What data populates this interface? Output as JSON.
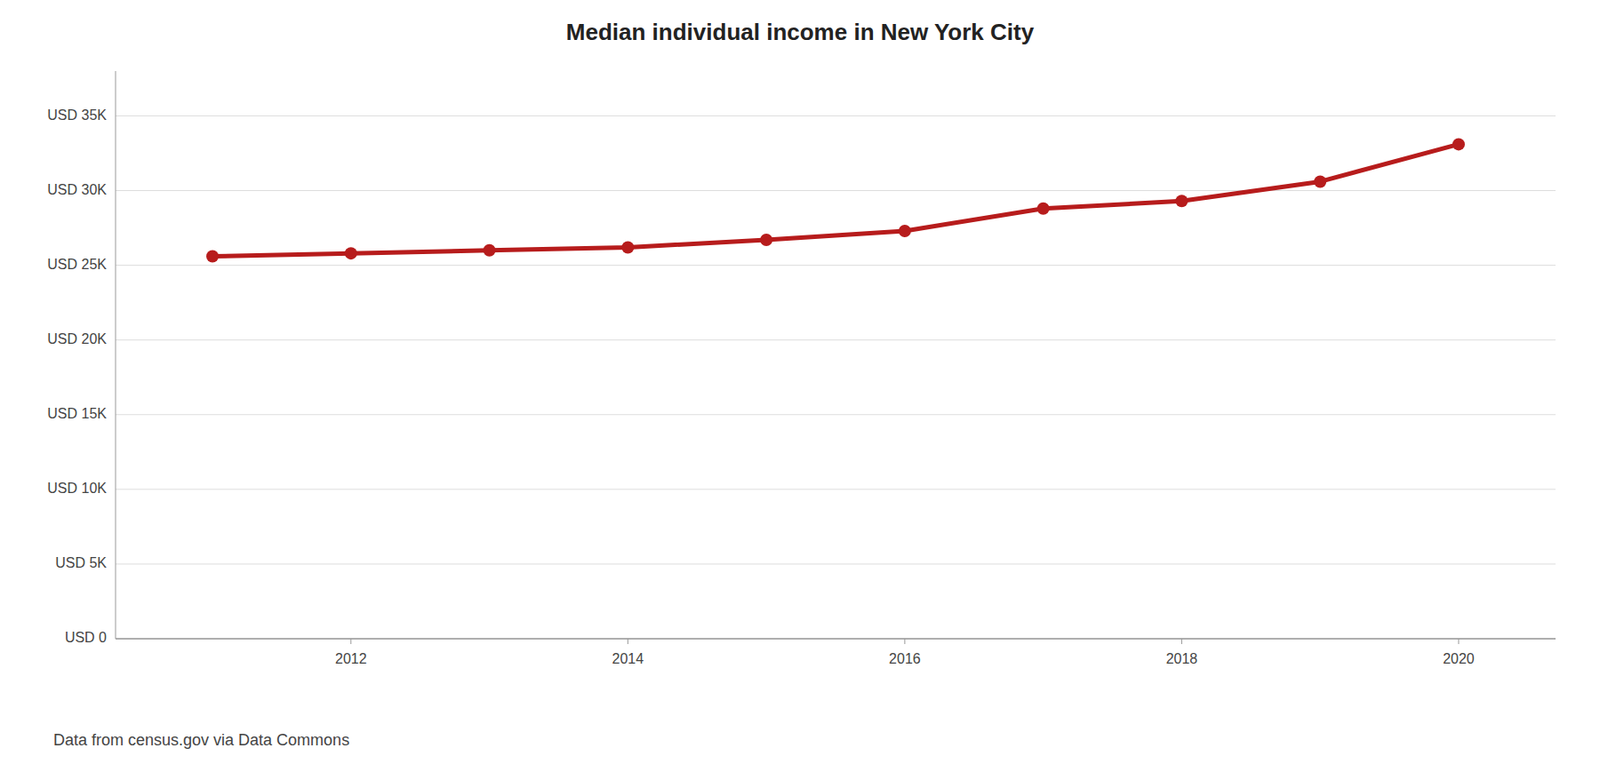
{
  "chart_data": {
    "type": "line",
    "title": "Median individual income in New York City",
    "x": [
      2011,
      2012,
      2013,
      2014,
      2015,
      2016,
      2017,
      2018,
      2019,
      2020
    ],
    "values": [
      25600,
      25800,
      26000,
      26200,
      26700,
      27300,
      28800,
      29300,
      30600,
      33100
    ],
    "color": "#b71c1c",
    "marker": "circle",
    "xlim": [
      2010.3,
      2020.7
    ],
    "xticks": [
      2012,
      2014,
      2016,
      2018,
      2020
    ],
    "ylim": [
      0,
      38000
    ],
    "yticks": [
      {
        "value": 0,
        "label": "USD 0"
      },
      {
        "value": 5000,
        "label": "USD 5K"
      },
      {
        "value": 10000,
        "label": "USD 10K"
      },
      {
        "value": 15000,
        "label": "USD 15K"
      },
      {
        "value": 20000,
        "label": "USD 20K"
      },
      {
        "value": 25000,
        "label": "USD 25K"
      },
      {
        "value": 30000,
        "label": "USD 30K"
      },
      {
        "value": 35000,
        "label": "USD 35K"
      }
    ],
    "grid": true,
    "annotation": "Data from census.gov via Data Commons"
  }
}
